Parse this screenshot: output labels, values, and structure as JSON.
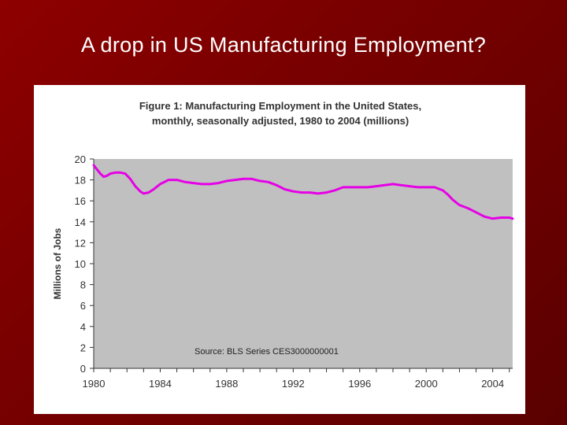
{
  "slide": {
    "title": "A drop in US Manufacturing Employment?"
  },
  "colors": {
    "background": "#7a0000",
    "plot_area": "#c0c0c0",
    "line": "#e600e6"
  },
  "chart_data": {
    "type": "line",
    "title_line1": "Figure 1:  Manufacturing Employment in the United States,",
    "title_line2": "monthly, seasonally adjusted, 1980 to 2004  (millions)",
    "xlabel": "",
    "ylabel": "Millions of Jobs",
    "xlim": [
      1980,
      2005.2
    ],
    "ylim": [
      0,
      20
    ],
    "yticks": [
      0,
      2,
      4,
      6,
      8,
      10,
      12,
      14,
      16,
      18,
      20
    ],
    "xtick_labels": [
      "1980",
      "1984",
      "1988",
      "1992",
      "1996",
      "2000",
      "2004"
    ],
    "annotation": "Source: BLS Series CES3000000001",
    "grid": false,
    "series": [
      {
        "name": "Manufacturing Employment",
        "x": [
          1980.0,
          1980.2,
          1980.4,
          1980.6,
          1980.8,
          1981.0,
          1981.3,
          1981.6,
          1981.9,
          1982.2,
          1982.5,
          1982.8,
          1983.0,
          1983.3,
          1983.6,
          1984.0,
          1984.5,
          1985.0,
          1985.5,
          1986.0,
          1986.5,
          1987.0,
          1987.5,
          1988.0,
          1988.5,
          1989.0,
          1989.5,
          1990.0,
          1990.5,
          1991.0,
          1991.5,
          1992.0,
          1992.5,
          1993.0,
          1993.5,
          1994.0,
          1994.5,
          1995.0,
          1995.5,
          1996.0,
          1996.5,
          1997.0,
          1997.5,
          1998.0,
          1998.5,
          1999.0,
          1999.5,
          2000.0,
          2000.5,
          2001.0,
          2001.3,
          2001.6,
          2002.0,
          2002.5,
          2003.0,
          2003.5,
          2004.0,
          2004.5,
          2005.0,
          2005.2
        ],
        "values": [
          19.4,
          19.0,
          18.6,
          18.3,
          18.4,
          18.6,
          18.7,
          18.7,
          18.6,
          18.1,
          17.4,
          16.9,
          16.7,
          16.8,
          17.1,
          17.6,
          18.0,
          18.0,
          17.8,
          17.7,
          17.6,
          17.6,
          17.7,
          17.9,
          18.0,
          18.1,
          18.1,
          17.9,
          17.8,
          17.5,
          17.1,
          16.9,
          16.8,
          16.8,
          16.7,
          16.8,
          17.0,
          17.3,
          17.3,
          17.3,
          17.3,
          17.4,
          17.5,
          17.6,
          17.5,
          17.4,
          17.3,
          17.3,
          17.3,
          17.0,
          16.6,
          16.1,
          15.6,
          15.3,
          14.9,
          14.5,
          14.3,
          14.4,
          14.4,
          14.3
        ]
      }
    ]
  }
}
